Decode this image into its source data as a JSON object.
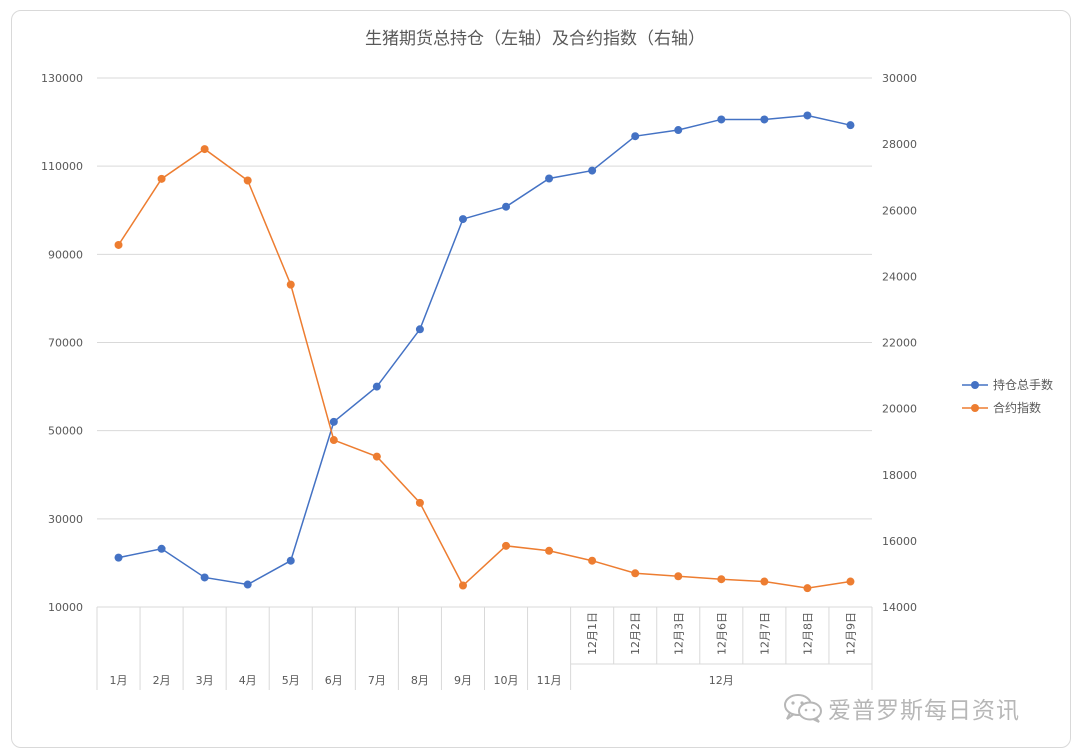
{
  "chart_data": {
    "type": "line",
    "title": "生猪期货总持仓（左轴）及合约指数（右轴）",
    "categories": [
      "1月",
      "2月",
      "3月",
      "4月",
      "5月",
      "6月",
      "7月",
      "8月",
      "9月",
      "10月",
      "11月",
      "12月1日",
      "12月2日",
      "12月3日",
      "12月6日",
      "12月7日",
      "12月8日",
      "12月9日"
    ],
    "category_group": {
      "label": "12月",
      "from_index": 11,
      "to_index": 17
    },
    "y_left": {
      "min": 10000,
      "max": 130000,
      "ticks": [
        "130000",
        "110000",
        "90000",
        "70000",
        "50000",
        "30000",
        "10000"
      ]
    },
    "y_right": {
      "min": 14000,
      "max": 30000,
      "ticks": [
        "30000",
        "28000",
        "26000",
        "24000",
        "22000",
        "20000",
        "18000",
        "16000",
        "14000"
      ]
    },
    "series": [
      {
        "name": "持仓总手数",
        "axis": "left",
        "color": "#4472C4",
        "values": [
          21200,
          23200,
          16700,
          15100,
          20500,
          52000,
          60000,
          73000,
          98000,
          100800,
          107200,
          109000,
          116800,
          118200,
          120600,
          120600,
          121500,
          119300
        ]
      },
      {
        "name": "合约指数",
        "axis": "right",
        "color": "#ED7D31",
        "values": [
          24950,
          26950,
          27850,
          26900,
          23750,
          19050,
          18550,
          17150,
          14650,
          15850,
          15700,
          15400,
          15020,
          14930,
          14840,
          14770,
          14570,
          14770
        ]
      }
    ],
    "legend_position": "right"
  },
  "watermark": {
    "text": "爱普罗斯每日资讯",
    "icon": "wechat-icon"
  }
}
